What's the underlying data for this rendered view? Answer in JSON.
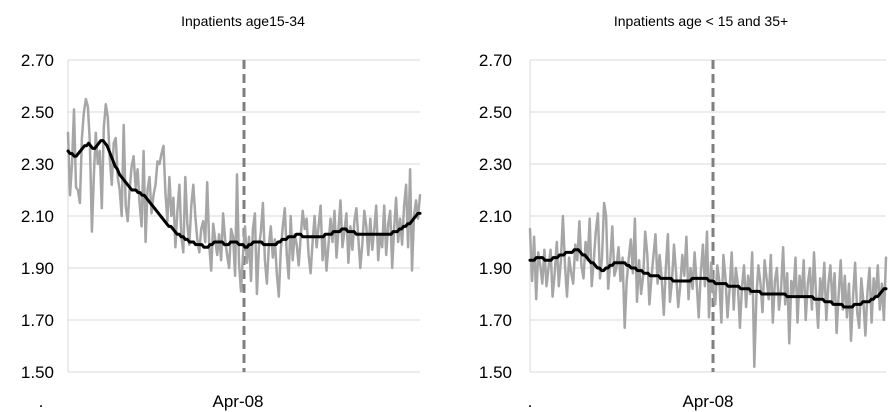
{
  "chart_data": [
    {
      "type": "line",
      "title": "Inpatients age15-34",
      "xlabel": "",
      "ylabel": "",
      "x_tick_label": "Apr-08",
      "x_axis_mark": ".",
      "ylim": [
        1.5,
        2.7
      ],
      "yticks": [
        "2.70",
        "2.50",
        "2.30",
        "2.10",
        "1.90",
        "1.70",
        "1.50"
      ],
      "grid": true,
      "legend": "none",
      "vertical_marker_index": 85,
      "series": [
        {
          "color": "#a6a6a6",
          "values": [
            2.42,
            2.18,
            2.3,
            2.51,
            2.21,
            2.2,
            2.15,
            2.4,
            2.5,
            2.55,
            2.52,
            2.38,
            2.04,
            2.26,
            2.42,
            2.3,
            2.35,
            2.13,
            2.44,
            2.53,
            2.48,
            2.32,
            2.22,
            2.38,
            2.4,
            2.25,
            2.2,
            2.1,
            2.45,
            2.14,
            2.08,
            2.2,
            2.29,
            2.33,
            2.21,
            2.28,
            2.15,
            2.06,
            2.35,
            2.0,
            2.2,
            2.25,
            2.11,
            2.18,
            2.22,
            2.31,
            2.3,
            2.34,
            2.37,
            2.19,
            2.08,
            2.25,
            2.1,
            2.17,
            1.98,
            2.12,
            2.22,
            2.02,
            1.96,
            2.25,
            2.07,
            1.99,
            2.14,
            2.22,
            2.1,
            2.01,
            1.96,
            2.05,
            2.08,
            2.0,
            2.23,
            1.99,
            1.89,
            2.07,
            2.01,
            1.95,
            2.03,
            1.93,
            2.11,
            2.01,
            1.95,
            1.9,
            2.05,
            2.02,
            1.87,
            2.26,
            1.92,
            1.81,
            1.95,
            2.06,
            1.92,
            2.02,
            1.85,
            2.05,
            2.11,
            1.8,
            1.98,
            2.04,
            2.15,
            1.93,
            1.84,
            1.99,
            2.06,
            1.94,
            2.01,
            1.88,
            1.79,
            1.97,
            2.06,
            2.13,
            1.95,
            1.86,
            2.1,
            1.93,
            2.03,
            1.99,
            1.91,
            2.02,
            2.12,
            2.05,
            2.09,
            1.95,
            1.88,
            2.0,
            2.1,
            1.98,
            2.06,
            2.14,
            1.93,
            2.03,
            1.89,
            1.99,
            2.09,
            2.0,
            2.12,
            1.94,
            2.05,
            2.16,
            1.98,
            2.04,
            2.11,
            1.92,
            2.06,
            1.97,
            2.08,
            2.13,
            2.01,
            1.9,
            1.99,
            2.12,
            2.06,
            1.95,
            2.09,
            1.97,
            2.05,
            2.14,
            1.93,
            2.03,
            1.98,
            2.14,
            1.95,
            2.07,
            2.12,
            1.9,
            2.05,
            2.17,
            2.0,
            2.09,
            1.99,
            2.14,
            2.22,
            1.98,
            2.28,
            1.89,
            2.1,
            2.16,
            2.09,
            2.18
          ]
        },
        {
          "color": "#000000",
          "values": [
            2.35,
            2.34,
            2.34,
            2.33,
            2.33,
            2.34,
            2.35,
            2.36,
            2.37,
            2.37,
            2.38,
            2.37,
            2.36,
            2.36,
            2.37,
            2.38,
            2.39,
            2.39,
            2.38,
            2.37,
            2.35,
            2.33,
            2.31,
            2.29,
            2.28,
            2.26,
            2.25,
            2.24,
            2.23,
            2.22,
            2.21,
            2.2,
            2.2,
            2.2,
            2.19,
            2.19,
            2.18,
            2.18,
            2.17,
            2.16,
            2.15,
            2.14,
            2.13,
            2.12,
            2.11,
            2.1,
            2.09,
            2.08,
            2.07,
            2.06,
            2.06,
            2.05,
            2.04,
            2.03,
            2.03,
            2.02,
            2.02,
            2.01,
            2.01,
            2.0,
            2.0,
            2.0,
            1.99,
            1.99,
            1.99,
            1.99,
            1.98,
            1.98,
            1.98,
            1.99,
            1.99,
            2.0,
            2.0,
            2.0,
            2.0,
            2.0,
            1.99,
            1.99,
            1.99,
            2.0,
            2.0,
            2.0,
            2.0,
            1.99,
            1.99,
            1.99,
            1.98,
            1.98,
            1.99,
            1.99,
            2.0,
            2.0,
            2.0,
            2.0,
            2.0,
            1.99,
            1.99,
            1.99,
            1.99,
            1.99,
            1.99,
            1.99,
            2.0,
            2.0,
            2.01,
            2.01,
            2.01,
            2.02,
            2.02,
            2.02,
            2.02,
            2.03,
            2.03,
            2.03,
            2.02,
            2.02,
            2.02,
            2.02,
            2.02,
            2.02,
            2.02,
            2.02,
            2.02,
            2.02,
            2.02,
            2.03,
            2.03,
            2.03,
            2.03,
            2.04,
            2.04,
            2.04,
            2.04,
            2.05,
            2.05,
            2.05,
            2.04,
            2.04,
            2.04,
            2.04,
            2.03,
            2.03,
            2.03,
            2.03,
            2.03,
            2.03,
            2.03,
            2.03,
            2.03,
            2.03,
            2.03,
            2.03,
            2.03,
            2.03,
            2.03,
            2.03,
            2.03,
            2.03,
            2.04,
            2.04,
            2.04,
            2.05,
            2.05,
            2.06,
            2.06,
            2.07,
            2.07,
            2.08,
            2.09,
            2.1,
            2.11,
            2.11
          ]
        }
      ]
    },
    {
      "type": "line",
      "title": "Inpatients age < 15 and 35+",
      "xlabel": "",
      "ylabel": "",
      "x_tick_label": "Apr-08",
      "x_axis_mark": ".",
      "ylim": [
        1.5,
        2.7
      ],
      "yticks": [
        "2.70",
        "2.50",
        "2.30",
        "2.10",
        "1.90",
        "1.70",
        "1.50"
      ],
      "grid": true,
      "legend": "none",
      "vertical_marker_index": 85,
      "series": [
        {
          "color": "#a6a6a6",
          "values": [
            2.05,
            1.85,
            2.02,
            1.78,
            1.96,
            1.91,
            1.84,
            1.97,
            1.83,
            1.9,
            1.97,
            1.79,
            1.88,
            2.0,
            1.83,
            1.93,
            2.1,
            1.91,
            1.79,
            1.94,
            1.88,
            1.84,
            1.99,
            1.93,
            2.08,
            1.91,
            1.86,
            2.0,
            1.93,
            2.09,
            1.83,
            1.93,
            2.04,
            2.11,
            1.86,
            1.94,
            2.15,
            2.1,
            1.82,
            1.93,
            2.06,
            1.87,
            1.9,
            1.98,
            1.85,
            1.94,
            1.67,
            1.85,
            1.94,
            2.01,
            1.88,
            2.09,
            1.77,
            1.93,
            1.8,
            1.87,
            2.04,
            1.95,
            1.76,
            1.86,
            1.95,
            2.03,
            1.84,
            1.95,
            1.86,
            1.72,
            1.9,
            2.03,
            1.77,
            1.85,
            1.99,
            1.88,
            1.75,
            1.83,
            1.95,
            1.87,
            2.02,
            1.78,
            1.9,
            1.82,
            1.96,
            1.84,
            1.71,
            1.88,
            1.99,
            1.83,
            2.04,
            1.71,
            1.92,
            1.82,
            1.76,
            1.91,
            1.85,
            1.69,
            1.95,
            1.86,
            1.71,
            1.82,
            1.96,
            1.74,
            1.9,
            1.84,
            1.67,
            1.83,
            1.91,
            1.75,
            1.87,
            1.8,
            1.96,
            1.52,
            1.79,
            1.91,
            1.84,
            1.73,
            1.93,
            1.86,
            1.78,
            1.95,
            1.69,
            1.85,
            1.9,
            1.74,
            1.82,
            1.98,
            1.76,
            1.88,
            1.61,
            1.85,
            1.8,
            1.94,
            1.69,
            1.87,
            1.79,
            1.93,
            1.7,
            1.84,
            1.9,
            1.74,
            1.96,
            1.8,
            1.67,
            1.86,
            1.79,
            1.92,
            1.7,
            1.84,
            1.91,
            1.76,
            1.88,
            1.65,
            1.8,
            1.93,
            1.74,
            1.87,
            1.71,
            1.84,
            1.62,
            1.79,
            1.92,
            1.73,
            1.67,
            1.86,
            1.77,
            1.64,
            1.81,
            1.9,
            1.69,
            1.86,
            1.79,
            1.91,
            1.74,
            1.84,
            1.7,
            1.94
          ]
        },
        {
          "color": "#000000",
          "values": [
            1.93,
            1.93,
            1.93,
            1.94,
            1.94,
            1.94,
            1.94,
            1.93,
            1.93,
            1.93,
            1.93,
            1.94,
            1.94,
            1.94,
            1.95,
            1.95,
            1.95,
            1.96,
            1.96,
            1.96,
            1.96,
            1.97,
            1.97,
            1.97,
            1.96,
            1.95,
            1.95,
            1.94,
            1.93,
            1.92,
            1.92,
            1.91,
            1.9,
            1.9,
            1.89,
            1.89,
            1.9,
            1.9,
            1.91,
            1.91,
            1.92,
            1.92,
            1.92,
            1.92,
            1.92,
            1.92,
            1.91,
            1.91,
            1.9,
            1.9,
            1.9,
            1.89,
            1.89,
            1.89,
            1.88,
            1.88,
            1.88,
            1.87,
            1.87,
            1.87,
            1.87,
            1.87,
            1.86,
            1.86,
            1.86,
            1.86,
            1.86,
            1.86,
            1.85,
            1.85,
            1.85,
            1.85,
            1.85,
            1.85,
            1.85,
            1.85,
            1.85,
            1.86,
            1.86,
            1.86,
            1.86,
            1.86,
            1.86,
            1.86,
            1.86,
            1.85,
            1.85,
            1.85,
            1.84,
            1.84,
            1.84,
            1.84,
            1.84,
            1.84,
            1.83,
            1.83,
            1.83,
            1.83,
            1.83,
            1.83,
            1.82,
            1.82,
            1.82,
            1.82,
            1.82,
            1.81,
            1.81,
            1.81,
            1.81,
            1.81,
            1.8,
            1.8,
            1.8,
            1.8,
            1.8,
            1.8,
            1.8,
            1.8,
            1.8,
            1.8,
            1.8,
            1.8,
            1.79,
            1.79,
            1.79,
            1.79,
            1.79,
            1.79,
            1.79,
            1.79,
            1.79,
            1.79,
            1.79,
            1.79,
            1.79,
            1.78,
            1.78,
            1.78,
            1.78,
            1.78,
            1.77,
            1.77,
            1.77,
            1.77,
            1.76,
            1.76,
            1.76,
            1.76,
            1.76,
            1.75,
            1.75,
            1.75,
            1.75,
            1.75,
            1.76,
            1.76,
            1.76,
            1.76,
            1.77,
            1.77,
            1.77,
            1.77,
            1.78,
            1.78,
            1.79,
            1.79,
            1.8,
            1.81,
            1.82,
            1.82
          ]
        }
      ]
    }
  ]
}
